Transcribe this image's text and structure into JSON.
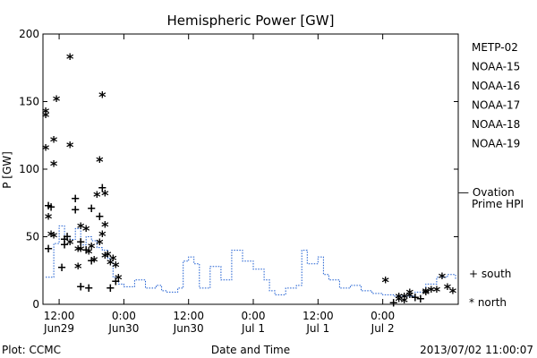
{
  "chart_data": {
    "type": "scatter",
    "title": "Hemispheric Power [GW]",
    "ylabel": "P [GW]",
    "xlabel": "Date and Time",
    "ylim": [
      0,
      200
    ],
    "xlim": [
      "2013-06-29T09:00",
      "2013-07-02T14:00"
    ],
    "y_ticks": [
      0,
      50,
      100,
      150,
      200
    ],
    "x_ticks": [
      {
        "t": "2013-06-29T12:00",
        "time": "12:00",
        "date": "Jun29"
      },
      {
        "t": "2013-06-30T00:00",
        "time": "0:00",
        "date": "Jun30"
      },
      {
        "t": "2013-06-30T12:00",
        "time": "12:00",
        "date": "Jun30"
      },
      {
        "t": "2013-07-01T00:00",
        "time": "0:00",
        "date": "Jul 1"
      },
      {
        "t": "2013-07-01T12:00",
        "time": "12:00",
        "date": "Jul 1"
      },
      {
        "t": "2013-07-02T00:00",
        "time": "0:00",
        "date": "Jul 2"
      }
    ],
    "markers": {
      "south": "+",
      "north": "*"
    },
    "legend": {
      "entries": [
        {
          "name": "METP-02",
          "color": "#000000"
        },
        {
          "name": "NOAA-15",
          "color": "#1a2fb8"
        },
        {
          "name": "NOAA-16",
          "color": "#1ab4e6"
        },
        {
          "name": "NOAA-17",
          "color": "#33d96b"
        },
        {
          "name": "NOAA-18",
          "color": "#f0a030"
        },
        {
          "name": "NOAA-19",
          "color": "#e63c1e"
        }
      ],
      "ovation_label_1": "— Ovation",
      "ovation_label_2": "Prime HPI",
      "ovation_color": "#1a5bd0",
      "south_label": "+ south",
      "north_label": "* north"
    },
    "series": [
      {
        "name": "METP-02",
        "color": "#000000",
        "points": [
          [
            "2013-06-29T09:30",
            142,
            "north"
          ],
          [
            "2013-06-29T10:30",
            72,
            "south"
          ],
          [
            "2013-06-29T11:00",
            103,
            "north"
          ],
          [
            "2013-06-29T13:00",
            44,
            "south"
          ],
          [
            "2013-06-29T14:00",
            45,
            "north"
          ],
          [
            "2013-06-29T15:30",
            40,
            "north"
          ],
          [
            "2013-06-29T18:00",
            32,
            "south"
          ],
          [
            "2013-06-29T19:30",
            65,
            "south"
          ],
          [
            "2013-06-29T20:00",
            51,
            "north"
          ],
          [
            "2013-06-29T21:30",
            30,
            "north"
          ],
          [
            "2013-07-02T04:00",
            5,
            "north"
          ],
          [
            "2013-07-02T06:00",
            5,
            "south"
          ],
          [
            "2013-07-02T09:00",
            10,
            "north"
          ],
          [
            "2013-07-02T12:00",
            12,
            "north"
          ]
        ]
      },
      {
        "name": "NOAA-15",
        "color": "#1a2fb8",
        "points": [
          [
            "2013-06-29T09:30",
            139,
            "north"
          ],
          [
            "2013-06-29T10:00",
            73,
            "south"
          ],
          [
            "2013-06-29T11:30",
            151,
            "north"
          ],
          [
            "2013-06-29T14:00",
            117,
            "north"
          ],
          [
            "2013-06-29T15:00",
            70,
            "south"
          ],
          [
            "2013-06-29T16:00",
            46,
            "south"
          ],
          [
            "2013-06-29T17:00",
            55,
            "north"
          ],
          [
            "2013-06-29T18:00",
            71,
            "south"
          ],
          [
            "2013-06-29T19:00",
            80,
            "north"
          ],
          [
            "2013-06-29T20:00",
            86,
            "south"
          ],
          [
            "2013-06-29T20:30",
            81,
            "north"
          ],
          [
            "2013-06-29T22:30",
            28,
            "north"
          ],
          [
            "2013-07-02T05:00",
            8,
            "north"
          ],
          [
            "2013-07-02T10:00",
            10,
            "north"
          ]
        ]
      },
      {
        "name": "NOAA-16",
        "color": "#1ab4e6",
        "points": [
          [
            "2013-06-29T10:00",
            64,
            "north"
          ],
          [
            "2013-06-29T11:00",
            50,
            "north"
          ],
          [
            "2013-06-29T13:00",
            48,
            "south"
          ],
          [
            "2013-06-29T15:00",
            78,
            "south"
          ],
          [
            "2013-06-29T16:00",
            40,
            "north"
          ],
          [
            "2013-06-29T17:30",
            38,
            "north"
          ],
          [
            "2013-06-29T19:30",
            106,
            "north"
          ],
          [
            "2013-06-29T20:30",
            58,
            "north"
          ],
          [
            "2013-06-29T23:00",
            19,
            "north"
          ],
          [
            "2013-07-02T03:00",
            3,
            "north"
          ],
          [
            "2013-07-02T08:00",
            9,
            "north"
          ]
        ]
      },
      {
        "name": "NOAA-17",
        "color": "#33d96b",
        "points": []
      },
      {
        "name": "NOAA-18",
        "color": "#f0a030",
        "points": [
          [
            "2013-06-29T10:30",
            51,
            "north"
          ],
          [
            "2013-06-29T12:30",
            27,
            "south"
          ],
          [
            "2013-06-29T13:30",
            50,
            "south"
          ],
          [
            "2013-06-29T15:30",
            27,
            "north"
          ],
          [
            "2013-06-29T16:00",
            13,
            "south"
          ],
          [
            "2013-06-29T17:30",
            12,
            "south"
          ],
          [
            "2013-06-29T18:30",
            32,
            "north"
          ],
          [
            "2013-06-29T20:00",
            154,
            "north"
          ],
          [
            "2013-06-29T21:00",
            36,
            "north"
          ],
          [
            "2013-06-29T21:30",
            12,
            "south"
          ],
          [
            "2013-06-29T22:30",
            17,
            "south"
          ],
          [
            "2013-07-02T02:00",
            1,
            "south"
          ],
          [
            "2013-07-02T04:00",
            2,
            "north"
          ],
          [
            "2013-07-02T07:00",
            4,
            "south"
          ]
        ]
      },
      {
        "name": "NOAA-19",
        "color": "#e63c1e",
        "points": [
          [
            "2013-06-29T09:30",
            115,
            "north"
          ],
          [
            "2013-06-29T10:00",
            41,
            "south"
          ],
          [
            "2013-06-29T11:00",
            121,
            "north"
          ],
          [
            "2013-06-29T14:00",
            182,
            "north"
          ],
          [
            "2013-06-29T16:00",
            57,
            "north"
          ],
          [
            "2013-06-29T17:00",
            40,
            "south"
          ],
          [
            "2013-06-29T18:00",
            42,
            "north"
          ],
          [
            "2013-06-29T19:30",
            45,
            "north"
          ],
          [
            "2013-06-29T20:30",
            35,
            "north"
          ],
          [
            "2013-06-29T22:00",
            33,
            "north"
          ],
          [
            "2013-07-02T00:30",
            17,
            "north"
          ],
          [
            "2013-07-02T03:00",
            5,
            "north"
          ],
          [
            "2013-07-02T05:00",
            6,
            "north"
          ],
          [
            "2013-07-02T08:00",
            8,
            "north"
          ],
          [
            "2013-07-02T11:00",
            20,
            "north"
          ],
          [
            "2013-07-02T13:00",
            9,
            "north"
          ]
        ]
      }
    ],
    "ovation": [
      [
        "2013-06-29T09:30",
        20
      ],
      [
        "2013-06-29T11:00",
        45
      ],
      [
        "2013-06-29T12:00",
        58
      ],
      [
        "2013-06-29T13:00",
        50
      ],
      [
        "2013-06-29T14:00",
        48
      ],
      [
        "2013-06-29T15:00",
        56
      ],
      [
        "2013-06-29T16:00",
        44
      ],
      [
        "2013-06-29T17:00",
        50
      ],
      [
        "2013-06-29T18:00",
        47
      ],
      [
        "2013-06-29T19:00",
        42
      ],
      [
        "2013-06-29T20:00",
        40
      ],
      [
        "2013-06-29T21:00",
        34
      ],
      [
        "2013-06-29T22:00",
        20
      ],
      [
        "2013-06-29T23:00",
        15
      ],
      [
        "2013-06-30T00:00",
        13
      ],
      [
        "2013-06-30T02:00",
        18
      ],
      [
        "2013-06-30T04:00",
        12
      ],
      [
        "2013-06-30T06:00",
        14
      ],
      [
        "2013-06-30T07:00",
        10
      ],
      [
        "2013-06-30T08:00",
        9
      ],
      [
        "2013-06-30T10:00",
        12
      ],
      [
        "2013-06-30T11:00",
        32
      ],
      [
        "2013-06-30T12:00",
        35
      ],
      [
        "2013-06-30T13:00",
        30
      ],
      [
        "2013-06-30T14:00",
        12
      ],
      [
        "2013-06-30T16:00",
        28
      ],
      [
        "2013-06-30T18:00",
        18
      ],
      [
        "2013-06-30T20:00",
        40
      ],
      [
        "2013-06-30T22:00",
        32
      ],
      [
        "2013-07-01T00:00",
        26
      ],
      [
        "2013-07-01T02:00",
        18
      ],
      [
        "2013-07-01T03:00",
        10
      ],
      [
        "2013-07-01T04:00",
        7
      ],
      [
        "2013-07-01T06:00",
        12
      ],
      [
        "2013-07-01T08:00",
        14
      ],
      [
        "2013-07-01T09:00",
        40
      ],
      [
        "2013-07-01T10:00",
        30
      ],
      [
        "2013-07-01T12:00",
        35
      ],
      [
        "2013-07-01T13:00",
        22
      ],
      [
        "2013-07-01T14:00",
        18
      ],
      [
        "2013-07-01T16:00",
        12
      ],
      [
        "2013-07-01T18:00",
        14
      ],
      [
        "2013-07-01T20:00",
        10
      ],
      [
        "2013-07-01T22:00",
        8
      ],
      [
        "2013-07-02T00:00",
        7
      ],
      [
        "2013-07-02T02:00",
        6
      ],
      [
        "2013-07-02T04:00",
        6
      ],
      [
        "2013-07-02T06:00",
        9
      ],
      [
        "2013-07-02T08:00",
        15
      ],
      [
        "2013-07-02T10:00",
        20
      ],
      [
        "2013-07-02T12:00",
        22
      ],
      [
        "2013-07-02T13:30",
        18
      ]
    ]
  },
  "footer": {
    "plot_label": "Plot: CCMC",
    "timestamp": "2013/07/02 11:00:07"
  }
}
